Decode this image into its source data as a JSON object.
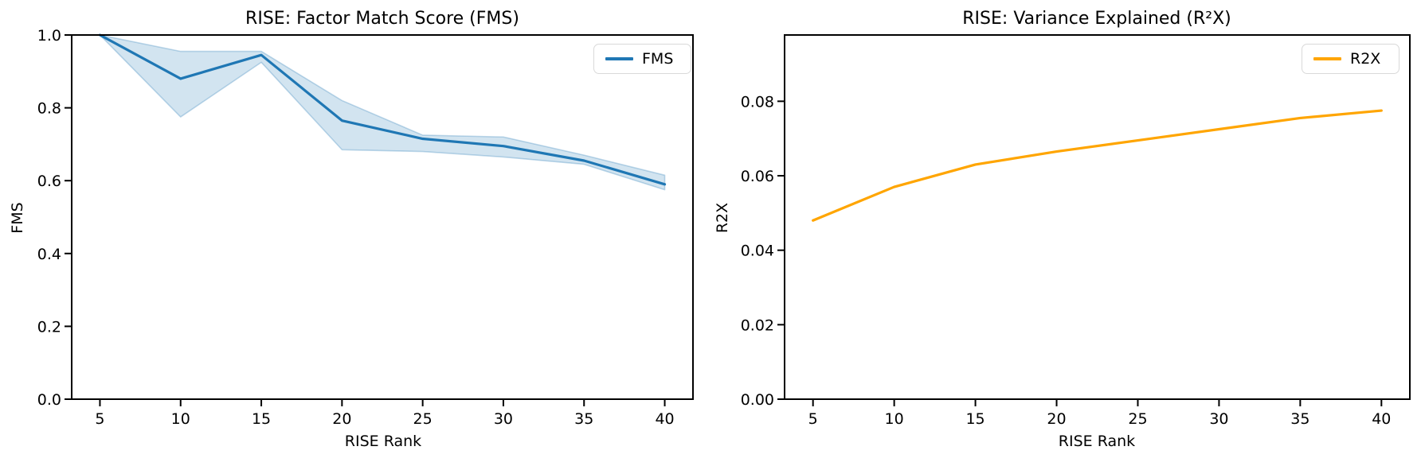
{
  "figure": {
    "background_color": "#ffffff",
    "text_color": "#000000"
  },
  "chart_data": [
    {
      "type": "line",
      "title": "RISE: Factor Match Score (FMS)",
      "xlabel": "RISE Rank",
      "ylabel": "FMS",
      "x": [
        5,
        10,
        15,
        20,
        25,
        30,
        35,
        40
      ],
      "xlim": [
        3.25,
        41.75
      ],
      "ylim": [
        0.0,
        1.0
      ],
      "xticks": [
        5,
        10,
        15,
        20,
        25,
        30,
        35,
        40
      ],
      "xtick_labels": [
        "5",
        "10",
        "15",
        "20",
        "25",
        "30",
        "35",
        "40"
      ],
      "yticks": [
        0.0,
        0.2,
        0.4,
        0.6,
        0.8,
        1.0
      ],
      "ytick_labels": [
        "0.0",
        "0.2",
        "0.4",
        "0.6",
        "0.8",
        "1.0"
      ],
      "grid": false,
      "legend": {
        "position": "upper right",
        "entries": [
          {
            "label": "FMS",
            "color": "#1f77b4"
          }
        ]
      },
      "series": [
        {
          "name": "FMS",
          "color": "#1f77b4",
          "values": [
            1.0,
            0.88,
            0.945,
            0.765,
            0.715,
            0.695,
            0.655,
            0.59
          ],
          "band_lower": [
            1.0,
            0.775,
            0.925,
            0.685,
            0.68,
            0.665,
            0.645,
            0.575
          ],
          "band_upper": [
            1.0,
            0.955,
            0.955,
            0.82,
            0.725,
            0.72,
            0.67,
            0.615
          ],
          "band_fill": "rgba(31,119,180,0.2)",
          "band_edge": "rgba(31,119,180,0.28)"
        }
      ]
    },
    {
      "type": "line",
      "title": "RISE: Variance Explained (R²X)",
      "xlabel": "RISE Rank",
      "ylabel": "R2X",
      "x": [
        5,
        10,
        15,
        20,
        25,
        30,
        35,
        40
      ],
      "xlim": [
        3.25,
        41.75
      ],
      "ylim": [
        0.0,
        0.0978
      ],
      "xticks": [
        5,
        10,
        15,
        20,
        25,
        30,
        35,
        40
      ],
      "xtick_labels": [
        "5",
        "10",
        "15",
        "20",
        "25",
        "30",
        "35",
        "40"
      ],
      "yticks": [
        0.0,
        0.02,
        0.04,
        0.06,
        0.08
      ],
      "ytick_labels": [
        "0.00",
        "0.02",
        "0.04",
        "0.06",
        "0.08"
      ],
      "grid": false,
      "legend": {
        "position": "upper right",
        "entries": [
          {
            "label": "R2X",
            "color": "#FFA500"
          }
        ]
      },
      "series": [
        {
          "name": "R2X",
          "color": "#FFA500",
          "values": [
            0.048,
            0.057,
            0.063,
            0.0665,
            0.0695,
            0.0725,
            0.0755,
            0.0775
          ]
        }
      ]
    }
  ]
}
